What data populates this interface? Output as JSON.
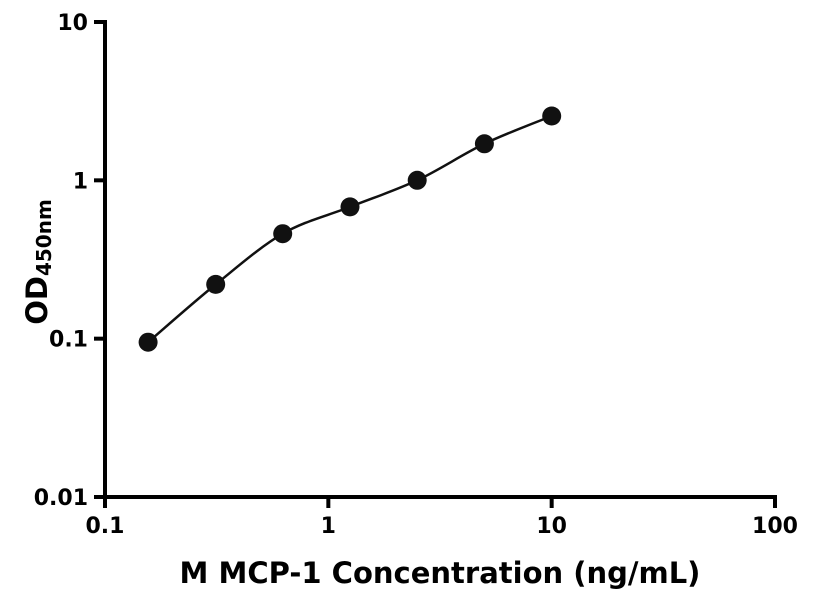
{
  "chart_data": {
    "type": "scatter",
    "title": "",
    "xlabel": "M MCP-1 Concentration (ng/mL)",
    "ylabel": "OD",
    "ylabel_subscript": "450nm",
    "x_scale": "log",
    "y_scale": "log",
    "xlim": [
      0.1,
      100
    ],
    "ylim": [
      0.01,
      10
    ],
    "x_ticks": [
      0.1,
      1,
      10,
      100
    ],
    "x_tick_labels": [
      "0.1",
      "1",
      "10",
      "100"
    ],
    "y_ticks": [
      0.01,
      0.1,
      1,
      10
    ],
    "y_tick_labels": [
      "0.01",
      "0.1",
      "1",
      "10"
    ],
    "grid": false,
    "legend": false,
    "axis_color": "#000000",
    "marker_color": "#111111",
    "line_color": "#111111",
    "points": [
      {
        "x": 0.156,
        "y": 0.095
      },
      {
        "x": 0.313,
        "y": 0.22
      },
      {
        "x": 0.625,
        "y": 0.46
      },
      {
        "x": 1.25,
        "y": 0.68
      },
      {
        "x": 2.5,
        "y": 1.0
      },
      {
        "x": 5,
        "y": 1.7
      },
      {
        "x": 10,
        "y": 2.55
      }
    ]
  }
}
